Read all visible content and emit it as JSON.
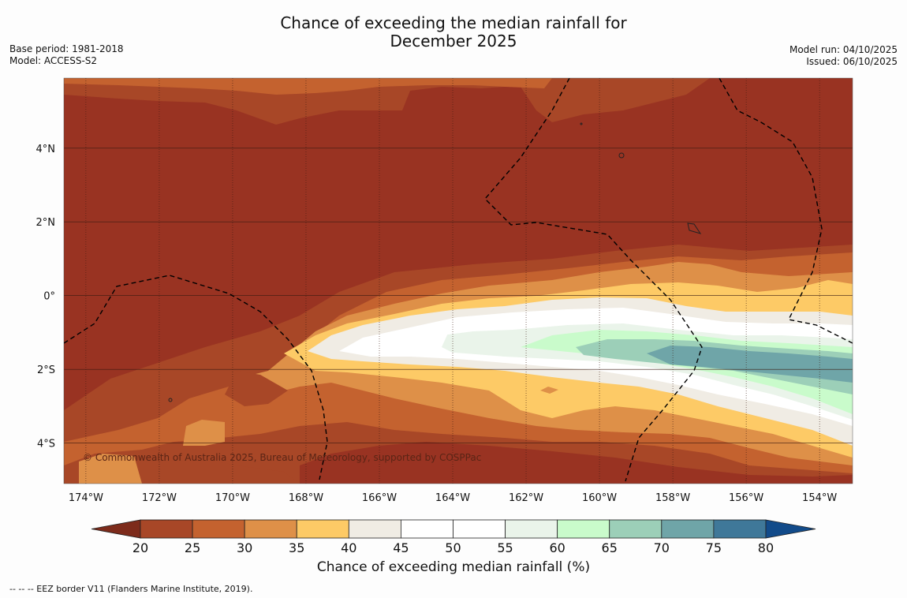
{
  "title": {
    "line1": "Chance of exceeding the median rainfall for",
    "line2": "December 2025"
  },
  "meta": {
    "base_period": "Base period: 1981-2018",
    "model": "Model: ACCESS-S2",
    "model_run": "Model run: 04/10/2025",
    "issued": "Issued: 06/10/2025"
  },
  "map": {
    "lat_labels": [
      "4°N",
      "2°N",
      "0°",
      "2°S",
      "4°S"
    ],
    "lat_values": [
      4,
      2,
      0,
      -2,
      -4
    ],
    "lon_labels": [
      "174°W",
      "172°W",
      "170°W",
      "168°W",
      "166°W",
      "164°W",
      "162°W",
      "160°W",
      "158°W",
      "156°W",
      "154°W"
    ],
    "lon_values": [
      -174,
      -172,
      -170,
      -168,
      -166,
      -164,
      -162,
      -160,
      -158,
      -156,
      -154
    ],
    "extent": {
      "lon_min": -174.6,
      "lon_max": -153.1,
      "lat_min": -5.1,
      "lat_max": 5.9
    },
    "copyright": "© Commonwealth of Australia 2025, Bureau of Meteorology, supported by COSPPac"
  },
  "colorbar": {
    "ticks": [
      "20",
      "25",
      "30",
      "35",
      "40",
      "45",
      "50",
      "55",
      "60",
      "65",
      "70",
      "75",
      "80"
    ],
    "colors": [
      "#a84727",
      "#c4622f",
      "#de9048",
      "#fdca66",
      "#f0ece4",
      "#ffffff",
      "#ffffff",
      "#eaf4ea",
      "#c9fbcb",
      "#9ccfb8",
      "#6fa5a8",
      "#3f7899"
    ],
    "under_color": "#7d2b1b",
    "over_color": "#124b8a",
    "label": "Chance of exceeding median rainfall (%)"
  },
  "footnote": "--  --  -- EEZ border V11 (Flanders Marine Institute, 2019).",
  "colors": {
    "background_dry": "#993322",
    "grid": "#3a1a10"
  }
}
